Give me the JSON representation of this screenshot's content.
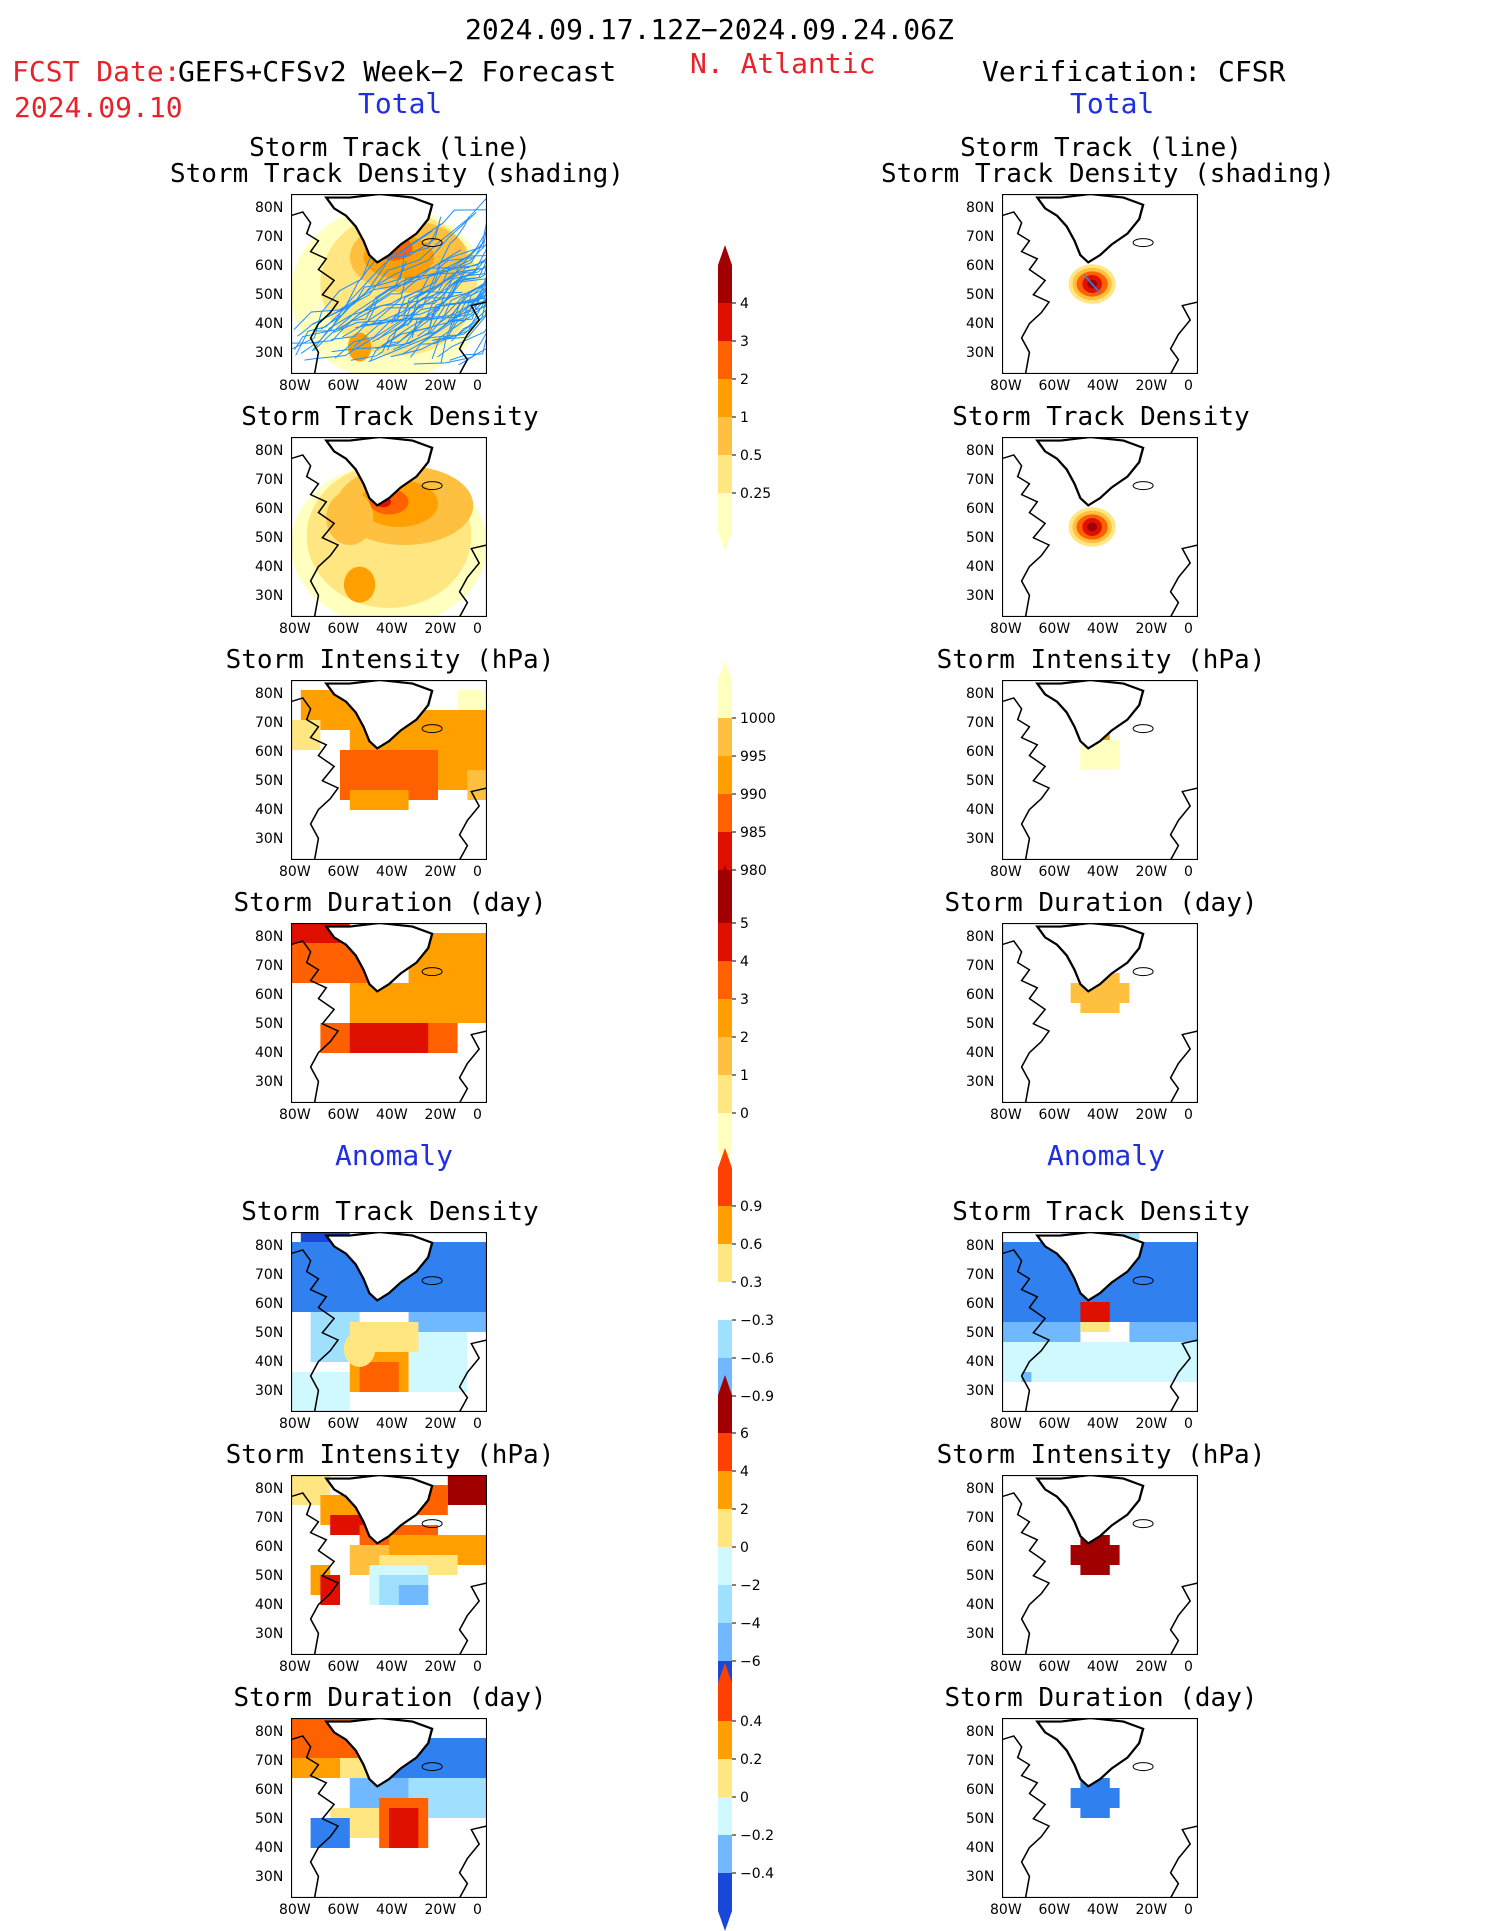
{
  "header": {
    "date_range": "2024.09.17.12Z−2024.09.24.06Z",
    "fcst_label": "FCST Date:",
    "fcst_model": "GEFS+CFSv2 Week−2 Forecast",
    "fcst_date": "2024.09.10",
    "region": "N. Atlantic",
    "verification": "Verification: CFSR"
  },
  "sections": {
    "total": "Total",
    "anomaly": "Anomaly"
  },
  "axes": {
    "lat_labels": [
      "80N",
      "70N",
      "60N",
      "50N",
      "40N",
      "30N"
    ],
    "lon_labels": [
      "80W",
      "60W",
      "40W",
      "20W",
      "0"
    ]
  },
  "colors": {
    "pos_scale": [
      "#ffffc0",
      "#ffe680",
      "#ffc040",
      "#ffa000",
      "#ff6000",
      "#e01000",
      "#a00000"
    ],
    "neg_scale": [
      "#d0f8ff",
      "#a0e0ff",
      "#70b8ff",
      "#3080f0",
      "#1848d8"
    ],
    "track_line": "#1e90ff"
  },
  "panels": {
    "forecast": [
      {
        "title1": "Storm Track (line)",
        "title2": "Storm Track Density (shading)"
      },
      {
        "title1": "Storm Track Density"
      },
      {
        "title1": "Storm Intensity (hPa)"
      },
      {
        "title1": "Storm Duration (day)"
      },
      {
        "title1": "Storm Track Density"
      },
      {
        "title1": "Storm Intensity (hPa)"
      },
      {
        "title1": "Storm Duration (day)"
      }
    ],
    "verification": [
      {
        "title1": "Storm Track (line)",
        "title2": "Storm Track Density (shading)"
      },
      {
        "title1": "Storm Track Density"
      },
      {
        "title1": "Storm Intensity (hPa)"
      },
      {
        "title1": "Storm Duration (day)"
      },
      {
        "title1": "Storm Track Density"
      },
      {
        "title1": "Storm Intensity (hPa)"
      },
      {
        "title1": "Storm Duration (day)"
      }
    ]
  },
  "colorbars": [
    {
      "name": "track-density-total",
      "labels": [
        "4",
        "3",
        "2",
        "1",
        "0.5",
        "0.25"
      ],
      "colors": [
        "#a00000",
        "#e01000",
        "#ff6000",
        "#ffa000",
        "#ffc040",
        "#ffe680",
        "#ffffc0"
      ]
    },
    {
      "name": "intensity-total",
      "labels": [
        "1000",
        "995",
        "990",
        "985",
        "980"
      ],
      "colors": [
        "#ffffc0",
        "#ffc040",
        "#ffa000",
        "#ff6000",
        "#e01000",
        "#a00000"
      ]
    },
    {
      "name": "duration-total",
      "labels": [
        "5",
        "4",
        "3",
        "2",
        "1",
        "0"
      ],
      "colors": [
        "#a00000",
        "#e01000",
        "#ff6000",
        "#ffa000",
        "#ffc040",
        "#ffe680",
        "#ffffc0"
      ]
    },
    {
      "name": "track-density-anomaly",
      "labels": [
        "0.9",
        "0.6",
        "0.3",
        "−0.3",
        "−0.6",
        "−0.9"
      ],
      "colors": [
        "#ff4000",
        "#ffa000",
        "#ffe680",
        "#ffffff",
        "#a0e0ff",
        "#70b8ff",
        "#1848d8"
      ]
    },
    {
      "name": "intensity-anomaly",
      "labels": [
        "6",
        "4",
        "2",
        "0",
        "−2",
        "−4",
        "−6"
      ],
      "colors": [
        "#a00000",
        "#ff4000",
        "#ffa000",
        "#ffe680",
        "#d0f8ff",
        "#a0e0ff",
        "#70b8ff",
        "#1848d8"
      ]
    },
    {
      "name": "duration-anomaly",
      "labels": [
        "0.4",
        "0.2",
        "0",
        "−0.2",
        "−0.4"
      ],
      "colors": [
        "#ff4000",
        "#ffa000",
        "#ffe680",
        "#d0f8ff",
        "#70b8ff",
        "#1848d8"
      ]
    }
  ]
}
